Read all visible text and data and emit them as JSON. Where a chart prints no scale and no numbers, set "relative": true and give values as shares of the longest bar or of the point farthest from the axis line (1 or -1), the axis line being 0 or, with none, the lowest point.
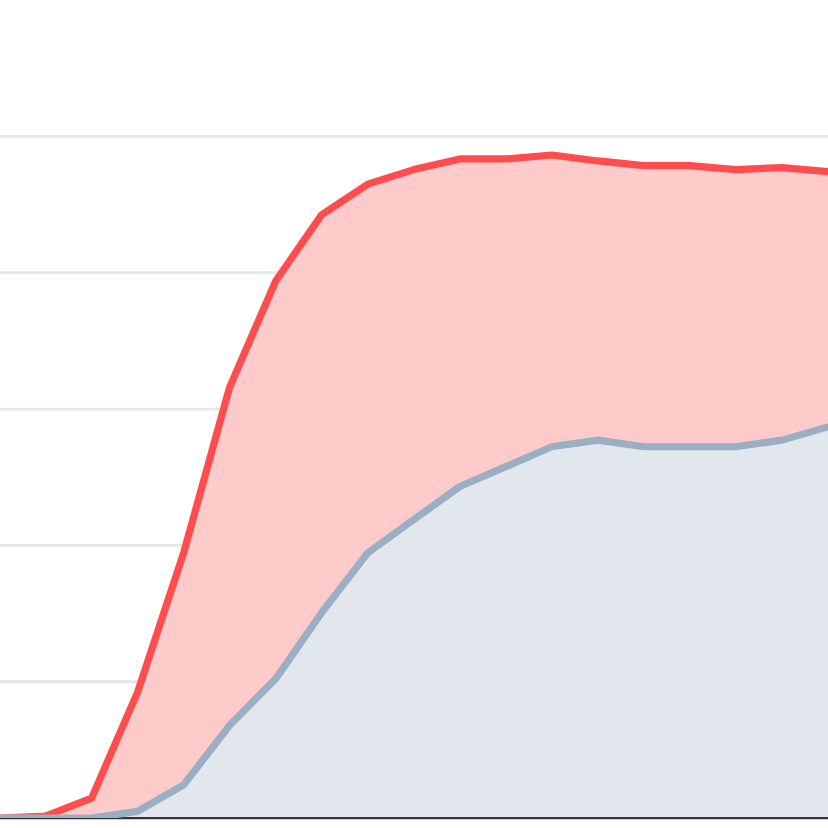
{
  "chart_data": {
    "type": "area",
    "relative": true,
    "grid": "y",
    "categories": [
      null,
      null,
      null,
      null,
      null,
      null,
      null,
      null,
      null,
      null,
      null,
      null,
      null,
      null,
      null,
      null,
      null,
      null,
      null
    ],
    "series": [
      {
        "color": "#ff4d4d",
        "values": [
          0,
          0.003,
          0.03,
          0.19,
          0.4,
          0.65,
          0.81,
          0.91,
          0.956,
          0.978,
          0.994,
          0.994,
          1.0,
          0.991,
          0.984,
          0.984,
          0.978,
          0.981,
          0.975
        ]
      },
      {
        "color": "#9aafc4",
        "values": [
          0,
          0,
          0,
          0.01,
          0.05,
          0.14,
          0.21,
          0.31,
          0.4,
          0.45,
          0.5,
          0.53,
          0.56,
          0.57,
          0.56,
          0.56,
          0.56,
          0.57,
          0.59
        ]
      }
    ]
  }
}
